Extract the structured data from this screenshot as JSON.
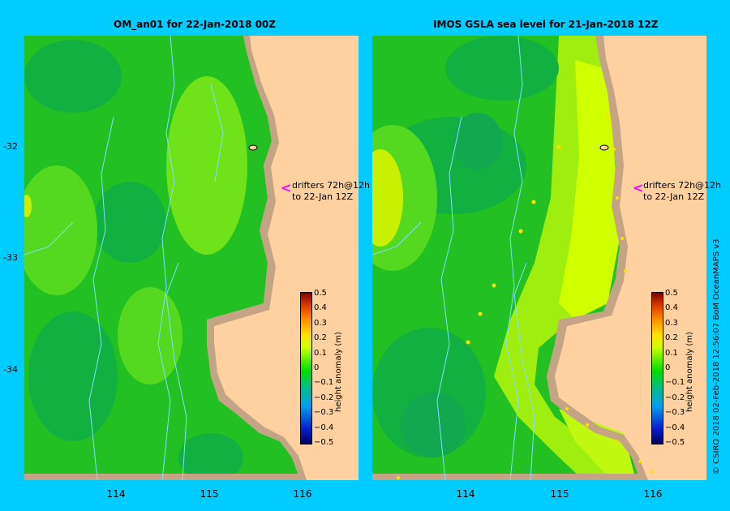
{
  "left_panel": {
    "title": "OM_an01  for 22-Jan-2018 00Z",
    "annotation_line1": "drifters 72h@12h",
    "annotation_line2": "to 22-Jan 12Z"
  },
  "right_panel": {
    "title": "IMOS GSLA sea level  for 21-Jan-2018 12Z",
    "annotation_line1": "drifters 72h@12h",
    "annotation_line2": "to 22-Jan 12Z"
  },
  "axes": {
    "latitudes": [
      "-32",
      "-33",
      "-34"
    ],
    "longitudes": [
      "114",
      "115",
      "116"
    ]
  },
  "colorbar": {
    "label": "height anomaly (m)",
    "ticks": [
      "0.5",
      "0.4",
      "0.3",
      "0.2",
      "0.1",
      "0",
      "−0.1",
      "−0.2",
      "−0.3",
      "−0.4",
      "−0.5"
    ],
    "range": [
      -0.5,
      0.5
    ]
  },
  "credit": "© CSIRO 2018   02-Feb-2018 12:56:07 BoM OceanMAPS v3",
  "colors": {
    "background": "#00ccff",
    "land": "#ffd0a0",
    "coast": "#c4a484",
    "drifter_track": "#80e0ff",
    "arrow": "#ff00ff"
  }
}
